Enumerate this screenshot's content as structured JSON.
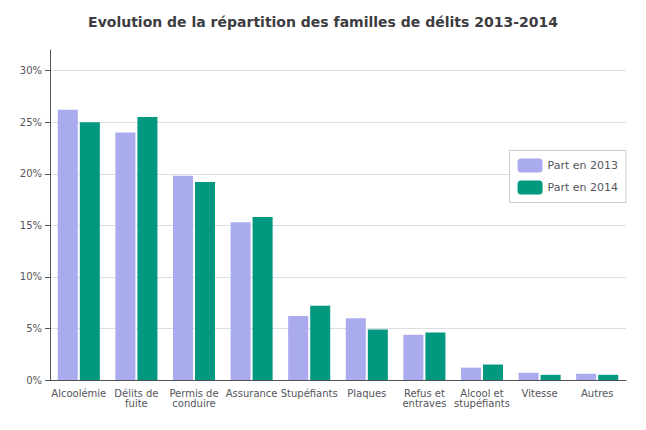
{
  "chart_data": {
    "type": "bar",
    "title": "Evolution de la répartition des familles de délits 2013-2014",
    "categories": [
      "Alcoolémie",
      "Délits de\nfuite",
      "Permis de\nconduire",
      "Assurance",
      "Stupéfiants",
      "Plaques",
      "Refus et\nentraves",
      "Alcool et\nstupéfiants",
      "Vitesse",
      "Autres"
    ],
    "series": [
      {
        "name": "Part en 2013",
        "color": "#AAAAEE",
        "values": [
          26.2,
          24.0,
          19.8,
          15.3,
          6.2,
          6.0,
          4.4,
          1.2,
          0.7,
          0.6
        ]
      },
      {
        "name": "Part en 2014",
        "color": "#009980",
        "values": [
          25.0,
          25.5,
          19.2,
          15.8,
          7.2,
          4.9,
          4.6,
          1.5,
          0.5,
          0.5
        ]
      }
    ],
    "ylim": [
      0,
      32
    ],
    "yticks": [
      {
        "value": 0,
        "label": "0%"
      },
      {
        "value": 5,
        "label": "5%"
      },
      {
        "value": 10,
        "label": "10%"
      },
      {
        "value": 15,
        "label": "15%"
      },
      {
        "value": 20,
        "label": "20%"
      },
      {
        "value": 25,
        "label": "25%"
      },
      {
        "value": 30,
        "label": "30%"
      }
    ],
    "grid": true,
    "legend": "right"
  }
}
